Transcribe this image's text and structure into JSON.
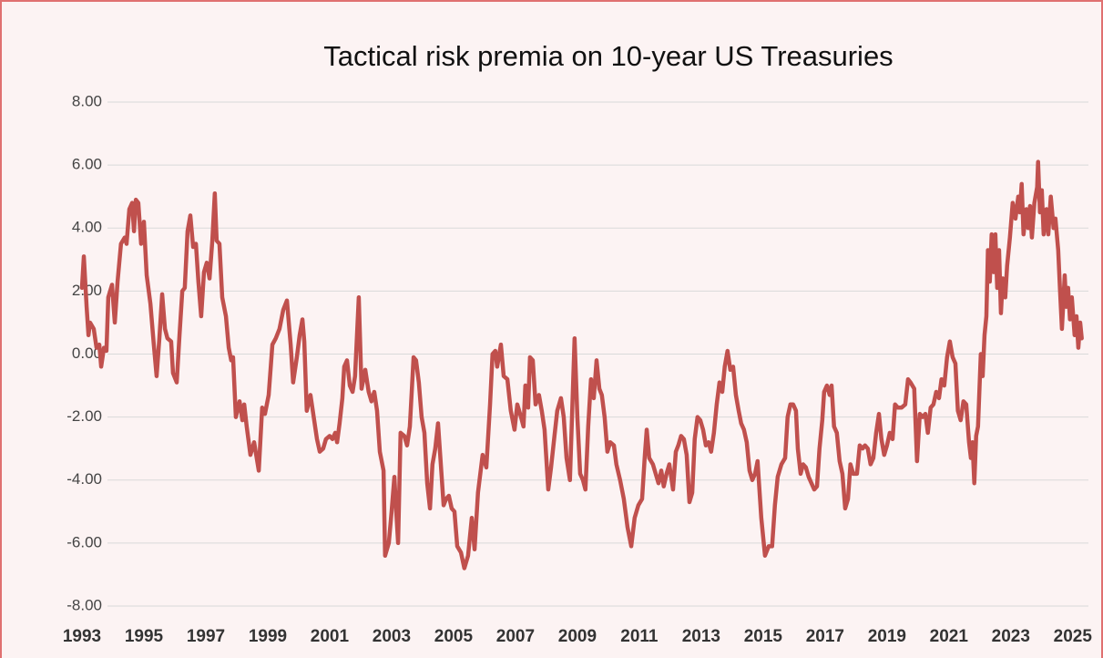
{
  "chart_data": {
    "type": "line",
    "title": "Tactical risk premia on 10-year US Treasuries",
    "color": "#c0504d",
    "grid": true,
    "xlim": [
      1993,
      2025.3
    ],
    "xticks": [
      1993,
      1995,
      1997,
      1999,
      2001,
      2003,
      2005,
      2007,
      2009,
      2011,
      2013,
      2015,
      2017,
      2019,
      2021,
      2023,
      2025
    ],
    "ylim": [
      -8,
      8
    ],
    "yticks": [
      {
        "value": -8,
        "label": "-8.00"
      },
      {
        "value": -6,
        "label": "-6.00"
      },
      {
        "value": -4,
        "label": "-4.00"
      },
      {
        "value": -2,
        "label": "-2.00"
      },
      {
        "value": 0,
        "label": "0.00"
      },
      {
        "value": 2,
        "label": "2.00"
      },
      {
        "value": 4,
        "label": "4.00"
      },
      {
        "value": 6,
        "label": "6.00"
      },
      {
        "value": 8,
        "label": "8.00"
      }
    ],
    "x": [
      1993.0,
      1993.06,
      1993.15,
      1993.21,
      1993.26,
      1993.38,
      1993.47,
      1993.56,
      1993.62,
      1993.71,
      1993.79,
      1993.85,
      1993.97,
      1994.06,
      1994.15,
      1994.26,
      1994.38,
      1994.44,
      1994.53,
      1994.62,
      1994.68,
      1994.74,
      1994.82,
      1994.91,
      1995.0,
      1995.09,
      1995.21,
      1995.32,
      1995.41,
      1995.5,
      1995.59,
      1995.68,
      1995.76,
      1995.88,
      1995.94,
      1996.06,
      1996.15,
      1996.24,
      1996.32,
      1996.41,
      1996.5,
      1996.59,
      1996.68,
      1996.76,
      1996.85,
      1996.94,
      1997.03,
      1997.12,
      1997.21,
      1997.29,
      1997.35,
      1997.44,
      1997.53,
      1997.65,
      1997.74,
      1997.82,
      1997.88,
      1997.97,
      1998.09,
      1998.18,
      1998.24,
      1998.32,
      1998.44,
      1998.56,
      1998.71,
      1998.82,
      1998.91,
      1999.03,
      1999.15,
      1999.26,
      1999.38,
      1999.5,
      1999.62,
      1999.74,
      1999.82,
      1999.94,
      2000.03,
      2000.12,
      2000.18,
      2000.26,
      2000.38,
      2000.5,
      2000.59,
      2000.68,
      2000.79,
      2000.88,
      2001.0,
      2001.09,
      2001.18,
      2001.24,
      2001.32,
      2001.41,
      2001.47,
      2001.56,
      2001.65,
      2001.74,
      2001.82,
      2001.94,
      2002.03,
      2002.15,
      2002.26,
      2002.35,
      2002.44,
      2002.53,
      2002.62,
      2002.74,
      2002.79,
      2002.91,
      2003.0,
      2003.09,
      2003.15,
      2003.21,
      2003.29,
      2003.41,
      2003.5,
      2003.59,
      2003.71,
      2003.79,
      2003.88,
      2003.97,
      2004.06,
      2004.15,
      2004.24,
      2004.32,
      2004.41,
      2004.5,
      2004.59,
      2004.68,
      2004.76,
      2004.85,
      2004.94,
      2005.03,
      2005.12,
      2005.24,
      2005.35,
      2005.47,
      2005.59,
      2005.68,
      2005.79,
      2005.94,
      2006.06,
      2006.18,
      2006.26,
      2006.35,
      2006.41,
      2006.53,
      2006.62,
      2006.74,
      2006.85,
      2006.97,
      2007.06,
      2007.18,
      2007.26,
      2007.32,
      2007.41,
      2007.47,
      2007.56,
      2007.65,
      2007.76,
      2007.85,
      2007.94,
      2008.06,
      2008.15,
      2008.26,
      2008.35,
      2008.47,
      2008.56,
      2008.65,
      2008.76,
      2008.82,
      2008.91,
      2009.0,
      2009.09,
      2009.18,
      2009.26,
      2009.35,
      2009.44,
      2009.53,
      2009.62,
      2009.71,
      2009.79,
      2009.88,
      2009.97,
      2010.06,
      2010.18,
      2010.26,
      2010.38,
      2010.5,
      2010.62,
      2010.74,
      2010.85,
      2010.97,
      2011.09,
      2011.18,
      2011.24,
      2011.32,
      2011.44,
      2011.53,
      2011.62,
      2011.71,
      2011.79,
      2011.88,
      2011.97,
      2012.09,
      2012.18,
      2012.26,
      2012.35,
      2012.44,
      2012.53,
      2012.62,
      2012.71,
      2012.79,
      2012.88,
      2012.97,
      2013.06,
      2013.15,
      2013.24,
      2013.32,
      2013.41,
      2013.5,
      2013.59,
      2013.68,
      2013.76,
      2013.85,
      2013.94,
      2014.03,
      2014.12,
      2014.21,
      2014.29,
      2014.38,
      2014.47,
      2014.56,
      2014.65,
      2014.74,
      2014.82,
      2014.94,
      2015.06,
      2015.18,
      2015.29,
      2015.38,
      2015.47,
      2015.59,
      2015.71,
      2015.79,
      2015.88,
      2015.97,
      2016.06,
      2016.12,
      2016.21,
      2016.29,
      2016.38,
      2016.47,
      2016.56,
      2016.65,
      2016.74,
      2016.82,
      2016.91,
      2016.97,
      2017.06,
      2017.15,
      2017.21,
      2017.29,
      2017.38,
      2017.47,
      2017.56,
      2017.65,
      2017.74,
      2017.82,
      2017.91,
      2018.03,
      2018.12,
      2018.21,
      2018.29,
      2018.38,
      2018.47,
      2018.56,
      2018.65,
      2018.74,
      2018.82,
      2018.91,
      2019.0,
      2019.09,
      2019.18,
      2019.26,
      2019.35,
      2019.47,
      2019.59,
      2019.68,
      2019.76,
      2019.88,
      2019.97,
      2020.06,
      2020.15,
      2020.24,
      2020.32,
      2020.41,
      2020.5,
      2020.59,
      2020.68,
      2020.76,
      2020.85,
      2020.94,
      2021.03,
      2021.12,
      2021.21,
      2021.29,
      2021.38,
      2021.47,
      2021.56,
      2021.65,
      2021.71,
      2021.76,
      2021.82,
      2021.88,
      2021.94,
      2022.03,
      2022.09,
      2022.15,
      2022.21,
      2022.26,
      2022.32,
      2022.38,
      2022.44,
      2022.5,
      2022.56,
      2022.62,
      2022.68,
      2022.74,
      2022.82,
      2022.88,
      2022.97,
      2023.06,
      2023.15,
      2023.24,
      2023.29,
      2023.35,
      2023.41,
      2023.5,
      2023.56,
      2023.62,
      2023.68,
      2023.76,
      2023.85,
      2023.88,
      2023.94,
      2024.0,
      2024.06,
      2024.15,
      2024.21,
      2024.29,
      2024.38,
      2024.44,
      2024.53,
      2024.59,
      2024.65,
      2024.74,
      2024.79,
      2024.85,
      2024.91,
      2024.97,
      2025.06,
      2025.12,
      2025.18,
      2025.24,
      2025.29
    ],
    "values": [
      2.1,
      3.1,
      1.5,
      0.6,
      1.0,
      0.8,
      0.2,
      0.3,
      -0.4,
      0.2,
      0.1,
      1.8,
      2.2,
      1.0,
      2.3,
      3.5,
      3.7,
      3.5,
      4.6,
      4.8,
      3.9,
      4.9,
      4.8,
      3.5,
      4.2,
      2.5,
      1.6,
      0.3,
      -0.7,
      0.5,
      1.9,
      0.8,
      0.5,
      0.4,
      -0.6,
      -0.9,
      0.6,
      2.0,
      2.1,
      3.9,
      4.4,
      3.4,
      3.5,
      2.3,
      1.2,
      2.6,
      2.9,
      2.4,
      3.6,
      5.1,
      3.6,
      3.5,
      1.8,
      1.2,
      0.2,
      -0.2,
      -0.1,
      -2.0,
      -1.5,
      -2.1,
      -1.6,
      -2.3,
      -3.2,
      -2.8,
      -3.7,
      -1.7,
      -1.9,
      -1.3,
      0.3,
      0.5,
      0.8,
      1.4,
      1.7,
      0.3,
      -0.9,
      -0.1,
      0.6,
      1.1,
      0.4,
      -1.8,
      -1.3,
      -2.1,
      -2.7,
      -3.1,
      -3.0,
      -2.7,
      -2.6,
      -2.7,
      -2.5,
      -2.8,
      -2.2,
      -1.4,
      -0.4,
      -0.2,
      -1.0,
      -1.2,
      -0.7,
      1.8,
      -1.1,
      -0.5,
      -1.2,
      -1.5,
      -1.2,
      -1.8,
      -3.1,
      -3.7,
      -6.4,
      -6.0,
      -5.0,
      -3.9,
      -5.0,
      -6.0,
      -2.5,
      -2.6,
      -2.9,
      -2.3,
      -0.1,
      -0.2,
      -0.9,
      -2.0,
      -2.5,
      -4.1,
      -4.9,
      -3.5,
      -3.0,
      -2.2,
      -3.5,
      -4.8,
      -4.6,
      -4.5,
      -4.9,
      -5.0,
      -6.1,
      -6.3,
      -6.8,
      -6.4,
      -5.2,
      -6.2,
      -4.4,
      -3.2,
      -3.6,
      -1.6,
      0.0,
      0.1,
      -0.4,
      0.3,
      -0.7,
      -0.8,
      -1.8,
      -2.4,
      -1.6,
      -2.0,
      -2.3,
      -1.0,
      -1.7,
      -0.1,
      -0.2,
      -1.6,
      -1.3,
      -1.8,
      -2.4,
      -4.3,
      -3.6,
      -2.6,
      -1.8,
      -1.4,
      -2.0,
      -3.3,
      -4.0,
      -2.2,
      0.5,
      -2.0,
      -3.8,
      -4.0,
      -4.3,
      -2.3,
      -0.8,
      -1.4,
      -0.2,
      -1.1,
      -1.3,
      -2.0,
      -3.1,
      -2.8,
      -2.9,
      -3.5,
      -4.0,
      -4.6,
      -5.5,
      -6.1,
      -5.2,
      -4.8,
      -4.6,
      -3.2,
      -2.4,
      -3.3,
      -3.5,
      -3.8,
      -4.1,
      -3.7,
      -4.2,
      -3.8,
      -3.5,
      -4.3,
      -3.1,
      -2.9,
      -2.6,
      -2.7,
      -3.2,
      -4.7,
      -4.4,
      -2.7,
      -2.0,
      -2.1,
      -2.4,
      -2.9,
      -2.8,
      -3.1,
      -2.5,
      -1.6,
      -0.9,
      -1.2,
      -0.4,
      0.1,
      -0.5,
      -0.4,
      -1.3,
      -1.8,
      -2.2,
      -2.4,
      -2.8,
      -3.7,
      -4.0,
      -3.8,
      -3.4,
      -5.2,
      -6.4,
      -6.1,
      -6.1,
      -4.8,
      -3.9,
      -3.5,
      -3.3,
      -2.0,
      -1.6,
      -1.6,
      -1.8,
      -3.0,
      -3.8,
      -3.5,
      -3.6,
      -3.9,
      -4.1,
      -4.3,
      -4.2,
      -3.0,
      -2.1,
      -1.2,
      -1.0,
      -1.3,
      -1.0,
      -2.3,
      -2.5,
      -3.4,
      -3.8,
      -4.9,
      -4.6,
      -3.5,
      -3.8,
      -3.8,
      -2.9,
      -3.0,
      -2.9,
      -3.0,
      -3.5,
      -3.3,
      -2.5,
      -1.9,
      -2.7,
      -3.2,
      -2.9,
      -2.5,
      -2.7,
      -1.6,
      -1.7,
      -1.7,
      -1.6,
      -0.8,
      -0.9,
      -1.1,
      -3.4,
      -1.9,
      -2.0,
      -1.9,
      -2.5,
      -1.7,
      -1.6,
      -1.2,
      -1.4,
      -0.8,
      -1.0,
      -0.1,
      0.4,
      -0.1,
      -0.3,
      -1.8,
      -2.1,
      -1.5,
      -1.6,
      -2.8,
      -3.3,
      -2.8,
      -4.1,
      -2.6,
      -2.3,
      0.0,
      -0.7,
      0.6,
      1.2,
      3.3,
      2.3,
      3.8,
      2.6,
      3.8,
      2.1,
      3.3,
      1.3,
      2.4,
      1.8,
      2.8,
      3.7,
      4.8,
      4.3,
      5.0,
      4.5,
      5.4,
      3.8,
      4.6,
      4.0,
      4.7,
      3.7,
      4.8,
      5.3,
      6.1,
      4.5,
      5.2,
      3.8,
      4.6,
      3.8,
      5.0,
      4.0,
      4.3,
      3.3,
      2.0,
      0.8,
      2.5,
      1.5,
      2.1,
      1.1,
      1.8,
      0.6,
      1.2,
      0.2,
      1.0,
      0.5
    ]
  }
}
